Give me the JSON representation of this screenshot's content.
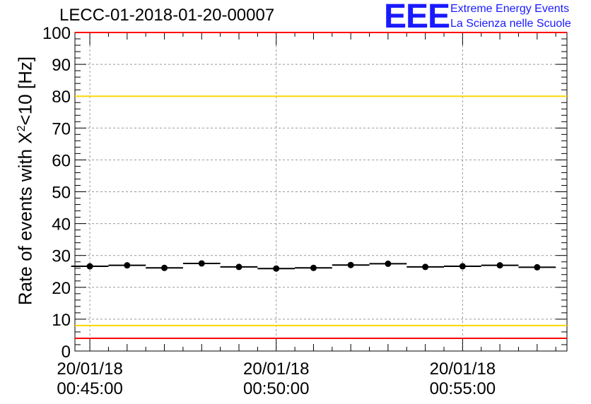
{
  "title": "LECC-01-2018-01-20-00007",
  "logo": {
    "mark": "EEE",
    "line1": "Extreme Energy Events",
    "line2": "La Scienza nelle Scuole"
  },
  "colors": {
    "data": "#000000",
    "limit_outer": "#ff0000",
    "limit_inner": "#ffd700",
    "logo": "#1a1aff",
    "grid": "#999999"
  },
  "chart_data": {
    "type": "scatter",
    "ylabel_main": "Rate of events with X",
    "ylabel_sup": "2",
    "ylabel_tail": "<10 [Hz]",
    "ylim": [
      0,
      100
    ],
    "yticks": [
      0,
      10,
      20,
      30,
      40,
      50,
      60,
      70,
      80,
      90,
      100
    ],
    "xlim_min": [
      -0.4,
      12.8
    ],
    "xticks": [
      {
        "min": 0,
        "label1": "20/01/18",
        "label2": "00:45:00"
      },
      {
        "min": 5,
        "label1": "20/01/18",
        "label2": "00:50:00"
      },
      {
        "min": 10,
        "label1": "20/01/18",
        "label2": "00:55:00"
      }
    ],
    "grid": true,
    "bin_width_min": 1,
    "points": [
      {
        "x": 0.0,
        "y": 26.6
      },
      {
        "x": 1.0,
        "y": 26.9
      },
      {
        "x": 2.0,
        "y": 26.1
      },
      {
        "x": 3.0,
        "y": 27.5
      },
      {
        "x": 4.0,
        "y": 26.4
      },
      {
        "x": 5.0,
        "y": 25.9
      },
      {
        "x": 6.0,
        "y": 26.1
      },
      {
        "x": 7.0,
        "y": 27.0
      },
      {
        "x": 8.0,
        "y": 27.4
      },
      {
        "x": 9.0,
        "y": 26.4
      },
      {
        "x": 10.0,
        "y": 26.6
      },
      {
        "x": 11.0,
        "y": 26.9
      },
      {
        "x": 12.0,
        "y": 26.3
      }
    ],
    "reference_lines": [
      {
        "y": 100,
        "color": "#ff0000"
      },
      {
        "y": 80,
        "color": "#ffd700"
      },
      {
        "y": 8,
        "color": "#ffd700"
      },
      {
        "y": 4,
        "color": "#ff0000"
      }
    ]
  }
}
